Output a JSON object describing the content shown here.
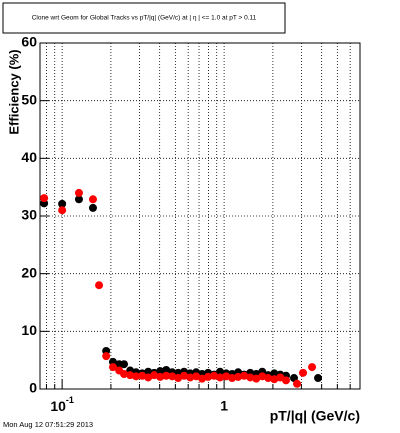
{
  "chart_data": {
    "type": "scatter",
    "title": "Clone wrt Geom for Global Tracks vs pT/|q| (GeV/c) at |  η  | <= 1.0 at pT > 0.11",
    "x_label": "pT/|q| (GeV/c)",
    "y_label": "Efficiency (%)",
    "timestamp": "Mon Aug 12 07:51:29 2013",
    "xscale": "log",
    "xlim": [
      0.073,
      6.9
    ],
    "ylim": [
      0,
      60
    ],
    "xticks": [
      {
        "value": 0.1,
        "label": "10^-1"
      },
      {
        "value": 1,
        "label": "1"
      }
    ],
    "xminor": [
      0.08,
      0.09,
      0.2,
      0.3,
      0.4,
      0.5,
      0.6,
      0.7,
      0.8,
      0.9,
      2,
      3,
      4,
      5,
      6
    ],
    "yticks": [
      0,
      10,
      20,
      30,
      40,
      50,
      60
    ],
    "grid": true,
    "series": [
      {
        "color": "#000000",
        "x": [
          0.0774,
          0.1,
          0.127,
          0.155,
          0.187,
          0.206,
          0.225,
          0.241,
          0.263,
          0.286,
          0.312,
          0.34,
          0.37,
          0.403,
          0.439,
          0.478,
          0.52,
          0.566,
          0.617,
          0.672,
          0.731,
          0.796,
          0.867,
          0.944,
          1.03,
          1.12,
          1.22,
          1.33,
          1.45,
          1.58,
          1.72,
          1.87,
          2.04,
          2.22,
          2.41,
          2.7,
          3.8
        ],
        "values": [
          32.2,
          32.1,
          32.9,
          31.4,
          6.6,
          4.7,
          4.3,
          4.3,
          3.2,
          2.9,
          2.7,
          3.0,
          2.8,
          3.1,
          3.3,
          2.9,
          2.8,
          3.0,
          2.7,
          2.9,
          2.6,
          2.8,
          2.5,
          3.0,
          2.7,
          2.6,
          2.9,
          2.5,
          2.8,
          2.6,
          3.0,
          2.4,
          2.7,
          2.5,
          2.3,
          1.9,
          1.9
        ]
      },
      {
        "color": "#ff0000",
        "x": [
          0.0774,
          0.1,
          0.127,
          0.155,
          0.169,
          0.187,
          0.206,
          0.225,
          0.241,
          0.263,
          0.286,
          0.312,
          0.34,
          0.37,
          0.403,
          0.439,
          0.478,
          0.52,
          0.566,
          0.617,
          0.672,
          0.731,
          0.796,
          0.867,
          0.944,
          1.03,
          1.12,
          1.22,
          1.33,
          1.45,
          1.58,
          1.72,
          1.87,
          2.04,
          2.22,
          2.41,
          2.82,
          3.07,
          3.49
        ],
        "values": [
          33.1,
          31.0,
          34.0,
          32.9,
          18.0,
          5.7,
          3.8,
          3.2,
          2.6,
          2.4,
          2.2,
          2.3,
          2.0,
          2.4,
          2.1,
          2.3,
          2.2,
          1.9,
          2.3,
          2.0,
          2.2,
          1.8,
          2.1,
          2.3,
          2.0,
          2.2,
          1.9,
          2.1,
          2.3,
          2.0,
          1.8,
          2.2,
          1.9,
          1.7,
          2.0,
          1.5,
          0.9,
          2.8,
          3.8
        ]
      }
    ]
  }
}
